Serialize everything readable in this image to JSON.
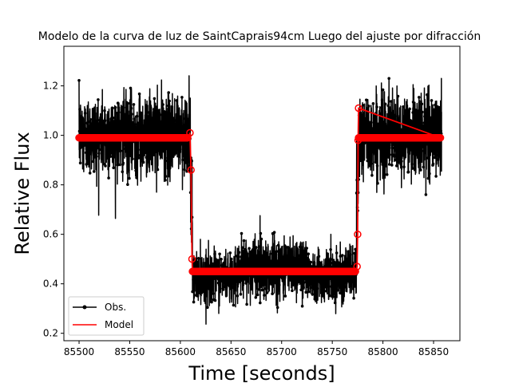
{
  "chart_data": {
    "type": "line",
    "title": "Modelo de la curva de luz de SaintCaprais94cm Luego del ajuste por difracción",
    "xlabel": "Time [seconds]",
    "ylabel": "Relative Flux",
    "xlim": [
      85485,
      85876
    ],
    "ylim": [
      0.17,
      1.36
    ],
    "xticks": [
      85500,
      85550,
      85600,
      85650,
      85700,
      85750,
      85800,
      85850
    ],
    "yticks": [
      0.2,
      0.4,
      0.6,
      0.8,
      1.0,
      1.2
    ],
    "ytick_labels": [
      "0.2",
      "0.4",
      "0.6",
      "0.8",
      "1.0",
      "1.2"
    ],
    "grid": false,
    "legend_position": "lower-left",
    "series": [
      {
        "name": "Obs.",
        "color": "#000000",
        "marker": "dot",
        "sampling": "dense noisy light curve (~0.1 s cadence), approximated by piecewise levels",
        "segments": [
          {
            "x_start": 85500,
            "x_end": 85610,
            "level": 1.0,
            "scatter": 0.08
          },
          {
            "x_start": 85610,
            "x_end": 85612,
            "level": 0.7,
            "scatter": 0.1
          },
          {
            "x_start": 85612,
            "x_end": 85660,
            "level": 0.43,
            "scatter": 0.05
          },
          {
            "x_start": 85660,
            "x_end": 85725,
            "level": 0.47,
            "scatter": 0.06
          },
          {
            "x_start": 85725,
            "x_end": 85774,
            "level": 0.44,
            "scatter": 0.05
          },
          {
            "x_start": 85774,
            "x_end": 85776,
            "level": 0.75,
            "scatter": 0.1
          },
          {
            "x_start": 85776,
            "x_end": 85858,
            "level": 1.0,
            "scatter": 0.08
          }
        ]
      },
      {
        "name": "Model",
        "color": "#ff0000",
        "marker": "open-circle",
        "x": [
          85500,
          85608,
          85609.5,
          85610.5,
          85611.5,
          85612,
          85773.5,
          85774.5,
          85775,
          85775.5,
          85776,
          85857
        ],
        "y": [
          0.99,
          0.99,
          1.01,
          0.86,
          0.5,
          0.45,
          0.45,
          0.47,
          0.6,
          0.98,
          1.11,
          0.99
        ]
      }
    ]
  }
}
